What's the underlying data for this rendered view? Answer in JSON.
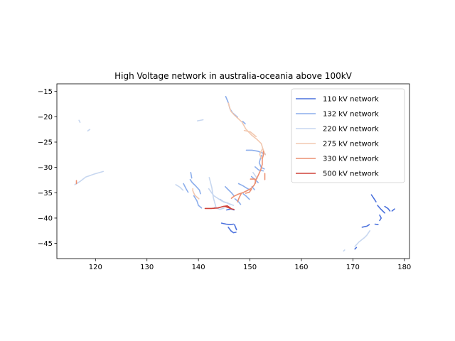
{
  "chart_data": {
    "type": "line",
    "title": "High Voltage network in australia-oceania above 100kV",
    "xlabel": "",
    "ylabel": "",
    "xlim": [
      112.5,
      181.0
    ],
    "ylim": [
      -48.0,
      -13.5
    ],
    "xticks": [
      120,
      130,
      140,
      150,
      160,
      170,
      180
    ],
    "yticks": [
      -15,
      -20,
      -25,
      -30,
      -35,
      -40,
      -45
    ],
    "grid": false,
    "legend_position": "top-right",
    "series": [
      {
        "name": "110 kV network",
        "color": "#4c72dd",
        "lines": [
          [
            [
              145.5,
              -38.4
            ],
            [
              146.3,
              -38.2
            ],
            [
              146.9,
              -38.4
            ]
          ],
          [
            [
              144.5,
              -41.0
            ],
            [
              145.4,
              -41.2
            ],
            [
              146.2,
              -41.3
            ],
            [
              146.8,
              -41.2
            ]
          ],
          [
            [
              145.8,
              -41.8
            ],
            [
              146.3,
              -42.5
            ],
            [
              146.8,
              -42.9
            ],
            [
              147.3,
              -42.8
            ]
          ],
          [
            [
              147.0,
              -41.3
            ],
            [
              147.2,
              -41.8
            ],
            [
              147.4,
              -42.3
            ]
          ],
          [
            [
              173.6,
              -35.4
            ],
            [
              174.0,
              -36.0
            ],
            [
              174.5,
              -36.8
            ]
          ],
          [
            [
              174.8,
              -37.5
            ],
            [
              175.3,
              -38.1
            ],
            [
              175.8,
              -38.6
            ],
            [
              176.2,
              -39.0
            ]
          ],
          [
            [
              176.2,
              -37.7
            ],
            [
              176.8,
              -38.1
            ],
            [
              177.2,
              -38.6
            ]
          ],
          [
            [
              177.6,
              -38.6
            ],
            [
              178.1,
              -38.2
            ]
          ],
          [
            [
              175.2,
              -39.4
            ],
            [
              175.5,
              -40.0
            ],
            [
              175.2,
              -40.5
            ]
          ],
          [
            [
              174.3,
              -41.2
            ],
            [
              174.9,
              -41.3
            ]
          ],
          [
            [
              171.8,
              -41.8
            ],
            [
              172.7,
              -41.6
            ],
            [
              173.2,
              -41.3
            ]
          ],
          [
            [
              170.7,
              -45.8
            ],
            [
              170.4,
              -46.1
            ]
          ]
        ]
      },
      {
        "name": "132 kV network",
        "color": "#8caeec",
        "lines": [
          [
            [
              145.3,
              -16.0
            ],
            [
              145.8,
              -17.2
            ],
            [
              146.1,
              -18.4
            ],
            [
              146.6,
              -19.2
            ],
            [
              147.6,
              -20.1
            ]
          ],
          [
            [
              148.6,
              -20.9
            ],
            [
              149.1,
              -21.4
            ]
          ],
          [
            [
              149.3,
              -26.6
            ],
            [
              150.4,
              -26.6
            ],
            [
              151.5,
              -26.8
            ],
            [
              152.3,
              -27.1
            ],
            [
              153.0,
              -27.4
            ]
          ],
          [
            [
              152.3,
              -27.6
            ],
            [
              152.0,
              -28.4
            ],
            [
              151.8,
              -29.1
            ],
            [
              152.2,
              -30.0
            ],
            [
              152.8,
              -30.3
            ]
          ],
          [
            [
              151.0,
              -29.9
            ],
            [
              151.7,
              -30.5
            ],
            [
              152.6,
              -30.7
            ]
          ],
          [
            [
              138.4,
              -32.4
            ],
            [
              138.8,
              -33.0
            ],
            [
              139.5,
              -33.7
            ],
            [
              140.2,
              -34.5
            ],
            [
              140.4,
              -35.2
            ]
          ],
          [
            [
              139.1,
              -35.6
            ],
            [
              139.7,
              -36.6
            ],
            [
              140.0,
              -37.5
            ],
            [
              140.6,
              -38.0
            ]
          ],
          [
            [
              137.1,
              -33.2
            ],
            [
              137.6,
              -34.2
            ],
            [
              138.0,
              -34.9
            ]
          ],
          [
            [
              138.5,
              -31.0
            ],
            [
              138.7,
              -32.1
            ]
          ],
          [
            [
              145.2,
              -33.8
            ],
            [
              145.8,
              -34.4
            ],
            [
              146.4,
              -35.0
            ],
            [
              146.9,
              -35.6
            ]
          ],
          [
            [
              147.8,
              -33.2
            ],
            [
              148.6,
              -33.6
            ],
            [
              149.4,
              -34.1
            ],
            [
              150.1,
              -34.5
            ]
          ],
          [
            [
              148.7,
              -35.2
            ],
            [
              149.3,
              -35.7
            ],
            [
              149.9,
              -36.3
            ]
          ],
          [
            [
              144.2,
              -36.3
            ],
            [
              144.9,
              -36.8
            ],
            [
              145.6,
              -37.0
            ],
            [
              146.2,
              -37.3
            ]
          ],
          [
            [
              147.1,
              -36.2
            ],
            [
              147.8,
              -36.8
            ],
            [
              148.2,
              -37.3
            ]
          ],
          [
            [
              150.3,
              -31.8
            ],
            [
              151.0,
              -32.4
            ],
            [
              151.6,
              -33.0
            ]
          ],
          [
            [
              150.4,
              -33.8
            ],
            [
              150.9,
              -34.4
            ]
          ]
        ]
      },
      {
        "name": "220 kV network",
        "color": "#c7d7f0",
        "lines": [
          [
            [
              116.0,
              -33.4
            ],
            [
              117.1,
              -32.7
            ],
            [
              118.1,
              -31.9
            ],
            [
              119.8,
              -31.3
            ],
            [
              121.5,
              -30.8
            ]
          ],
          [
            [
              116.8,
              -20.7
            ],
            [
              117.0,
              -21.1
            ]
          ],
          [
            [
              118.5,
              -22.8
            ],
            [
              118.9,
              -22.5
            ]
          ],
          [
            [
              139.8,
              -20.8
            ],
            [
              140.9,
              -20.6
            ]
          ],
          [
            [
              135.6,
              -33.4
            ],
            [
              136.4,
              -33.9
            ],
            [
              137.0,
              -34.5
            ]
          ],
          [
            [
              142.1,
              -32.0
            ],
            [
              142.6,
              -34.0
            ],
            [
              142.9,
              -36.0
            ],
            [
              143.4,
              -37.8
            ]
          ],
          [
            [
              142.0,
              -34.2
            ],
            [
              143.0,
              -35.6
            ],
            [
              144.5,
              -36.6
            ],
            [
              145.8,
              -37.1
            ],
            [
              146.8,
              -37.5
            ]
          ],
          [
            [
              143.1,
              -37.9
            ],
            [
              144.2,
              -38.3
            ],
            [
              145.0,
              -38.0
            ]
          ],
          [
            [
              150.6,
              -31.0
            ],
            [
              151.0,
              -31.6
            ],
            [
              151.4,
              -32.2
            ]
          ],
          [
            [
              170.4,
              -45.6
            ],
            [
              171.2,
              -44.7
            ],
            [
              172.2,
              -43.9
            ],
            [
              172.7,
              -43.4
            ],
            [
              173.3,
              -42.5
            ]
          ],
          [
            [
              168.4,
              -46.3
            ],
            [
              168.2,
              -46.5
            ]
          ]
        ]
      },
      {
        "name": "275 kV network",
        "color": "#f2c8b0",
        "lines": [
          [
            [
              145.8,
              -17.3
            ],
            [
              146.3,
              -18.9
            ],
            [
              146.9,
              -19.6
            ],
            [
              148.5,
              -21.1
            ],
            [
              149.2,
              -22.4
            ],
            [
              150.3,
              -23.6
            ],
            [
              151.3,
              -24.4
            ],
            [
              152.2,
              -25.3
            ],
            [
              152.6,
              -26.6
            ],
            [
              153.0,
              -27.5
            ]
          ],
          [
            [
              148.9,
              -22.7
            ],
            [
              150.1,
              -23.0
            ],
            [
              151.2,
              -23.9
            ]
          ],
          [
            [
              152.4,
              -26.4
            ],
            [
              151.9,
              -27.4
            ],
            [
              152.2,
              -28.2
            ]
          ],
          [
            [
              138.9,
              -34.2
            ],
            [
              138.9,
              -34.6
            ],
            [
              139.3,
              -35.5
            ],
            [
              140.1,
              -36.2
            ]
          ]
        ]
      },
      {
        "name": "330 kV network",
        "color": "#ec9072",
        "lines": [
          [
            [
              152.6,
              -26.8
            ],
            [
              152.6,
              -27.6
            ],
            [
              152.4,
              -28.3
            ],
            [
              152.4,
              -29.4
            ],
            [
              152.1,
              -30.5
            ],
            [
              151.6,
              -31.6
            ],
            [
              151.2,
              -32.4
            ],
            [
              150.9,
              -33.4
            ],
            [
              150.3,
              -34.1
            ],
            [
              149.4,
              -34.6
            ],
            [
              148.6,
              -35.0
            ],
            [
              147.7,
              -35.3
            ],
            [
              146.9,
              -35.7
            ],
            [
              146.4,
              -36.1
            ]
          ],
          [
            [
              150.3,
              -34.3
            ],
            [
              149.9,
              -34.9
            ],
            [
              149.2,
              -35.1
            ]
          ],
          [
            [
              152.9,
              -31.2
            ],
            [
              152.9,
              -32.4
            ]
          ],
          [
            [
              150.1,
              -32.3
            ],
            [
              151.0,
              -32.3
            ],
            [
              151.1,
              -33.1
            ]
          ],
          [
            [
              148.3,
              -35.2
            ],
            [
              147.9,
              -36.0
            ],
            [
              147.6,
              -36.8
            ]
          ],
          [
            [
              116.3,
              -32.6
            ],
            [
              116.3,
              -33.2
            ]
          ]
        ]
      },
      {
        "name": "500 kV network",
        "color": "#d0423a",
        "lines": [
          [
            [
              141.3,
              -38.1
            ],
            [
              142.5,
              -38.1
            ],
            [
              143.8,
              -38.0
            ],
            [
              144.8,
              -37.7
            ],
            [
              145.6,
              -37.6
            ],
            [
              146.2,
              -38.0
            ]
          ],
          [
            [
              145.2,
              -37.7
            ],
            [
              146.5,
              -38.2
            ],
            [
              146.9,
              -38.3
            ]
          ]
        ]
      }
    ]
  }
}
